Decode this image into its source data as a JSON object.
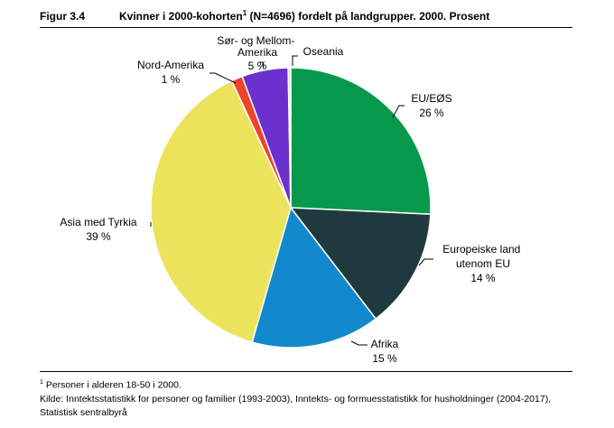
{
  "figure": {
    "number": "Figur 3.4",
    "title_main": "Kvinner i 2000-kohorten",
    "title_sup": "1",
    "title_rest": " (N=4696) fordelt på landgrupper. 2000. Prosent"
  },
  "footnote": {
    "marker": "1",
    "text": " Personer i alderen 18-50 i 2000."
  },
  "source": "Kilde: Inntektsstatistikk for personer og familier (1993-2003), Inntekts- og formuesstatistikk for husholdninger (2004-2017), Statistisk sentralbyrå",
  "chart_data": {
    "type": "pie",
    "title": "Kvinner i 2000-kohorten (N=4696) fordelt på landgrupper. 2000. Prosent",
    "slices": [
      {
        "label": "EU/EØS",
        "value_label": "26 %",
        "value": 26,
        "color": "#06994b"
      },
      {
        "label": "Europeiske land utenom EU",
        "value_label": "14 %",
        "value": 14,
        "color": "#1f3a3e"
      },
      {
        "label": "Afrika",
        "value_label": "15 %",
        "value": 15,
        "color": "#1289cd"
      },
      {
        "label": "Asia med Tyrkia",
        "value_label": "39 %",
        "value": 39,
        "color": "#ece35c"
      },
      {
        "label": "Nord-Amerika",
        "value_label": "1 %",
        "value": 1.3,
        "color": "#f0422d"
      },
      {
        "label": "Sør- og Mellom-Amerika",
        "value_label": "5 %",
        "value": 5.4,
        "color": "#6a31cf"
      },
      {
        "label": "Oseania",
        "value_label": "",
        "value": 0.3,
        "color": "#d9dde8"
      }
    ]
  }
}
